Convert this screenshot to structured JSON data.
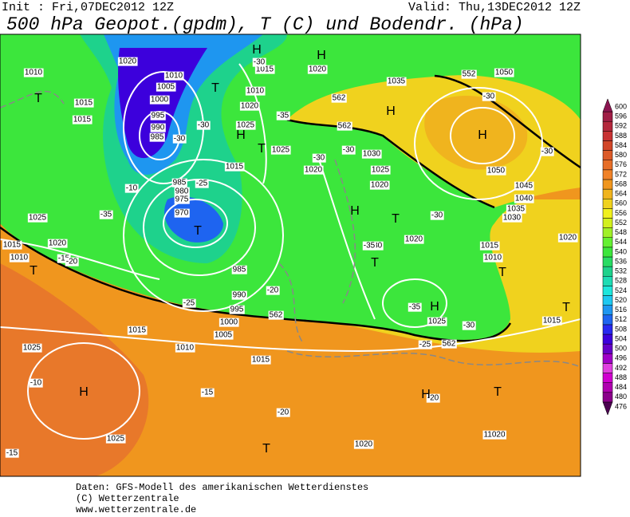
{
  "header": {
    "init": "Init : Fri,07DEC2012 12Z",
    "valid": "Valid: Thu,13DEC2012 12Z",
    "title": "500 hPa Geopot.(gpdm), T (C) und Bodendr. (hPa)"
  },
  "footer": {
    "lines": [
      "Daten: GFS-Modell des amerikanischen Wetterdienstes",
      "(C) Wetterzentrale",
      "www.wetterzentrale.de"
    ]
  },
  "colorbar": {
    "levels": [
      476,
      480,
      484,
      488,
      492,
      496,
      500,
      504,
      508,
      512,
      516,
      520,
      524,
      528,
      532,
      536,
      540,
      544,
      548,
      552,
      556,
      560,
      564,
      568,
      572,
      576,
      580,
      584,
      588,
      592,
      596,
      600
    ],
    "colors": [
      "#4b0050",
      "#8b008b",
      "#b000b0",
      "#d000d0",
      "#e040e0",
      "#a000c8",
      "#6400c8",
      "#3c00dc",
      "#2828f0",
      "#1e64f0",
      "#1e96f0",
      "#1ec8f0",
      "#1ee6dc",
      "#1edcb4",
      "#1ed28c",
      "#28dc64",
      "#3ce63c",
      "#64f032",
      "#a0f028",
      "#d2f01e",
      "#f0f01e",
      "#f0d21e",
      "#f0b41e",
      "#f0961e",
      "#f08228",
      "#e66e28",
      "#dc5a28",
      "#d24628",
      "#c83232",
      "#b4283c",
      "#a01e46",
      "#8c1450"
    ]
  },
  "map_labels": [
    "1020",
    "1010",
    "1015",
    "1015",
    "1010",
    "1005",
    "1000",
    "995",
    "990",
    "985",
    "985",
    "980",
    "975",
    "970",
    "1015",
    "1010",
    "1020",
    "1025",
    "1015",
    "1020",
    "1035",
    "1050",
    "1025",
    "1030",
    "1020",
    "1025",
    "1020",
    "1050",
    "1045",
    "1040",
    "1035",
    "1030",
    "1020",
    "1015",
    "1010",
    "1025",
    "1020",
    "1015",
    "1010",
    "985",
    "990",
    "995",
    "1000",
    "1005",
    "1010",
    "1015",
    "1015",
    "1025",
    "1025",
    "1020",
    "11020",
    "1025",
    "1015",
    "1020",
    "-30",
    "-30",
    "-30",
    "-30",
    "-30",
    "-30",
    "-30",
    "-30",
    "-30",
    "-30",
    "-10",
    "-10",
    "-35",
    "-35",
    "-35",
    "-35",
    "-15",
    "-15",
    "-15",
    "-20",
    "-20",
    "-20",
    "-20",
    "-25",
    "-25",
    "-25",
    "562",
    "562",
    "562",
    "562",
    "552"
  ],
  "pressure_centers": [
    "H",
    "H",
    "H",
    "H",
    "H",
    "H",
    "H",
    "H",
    "H",
    "T",
    "T",
    "T",
    "T",
    "T",
    "T",
    "T",
    "T",
    "T",
    "T",
    "T"
  ]
}
